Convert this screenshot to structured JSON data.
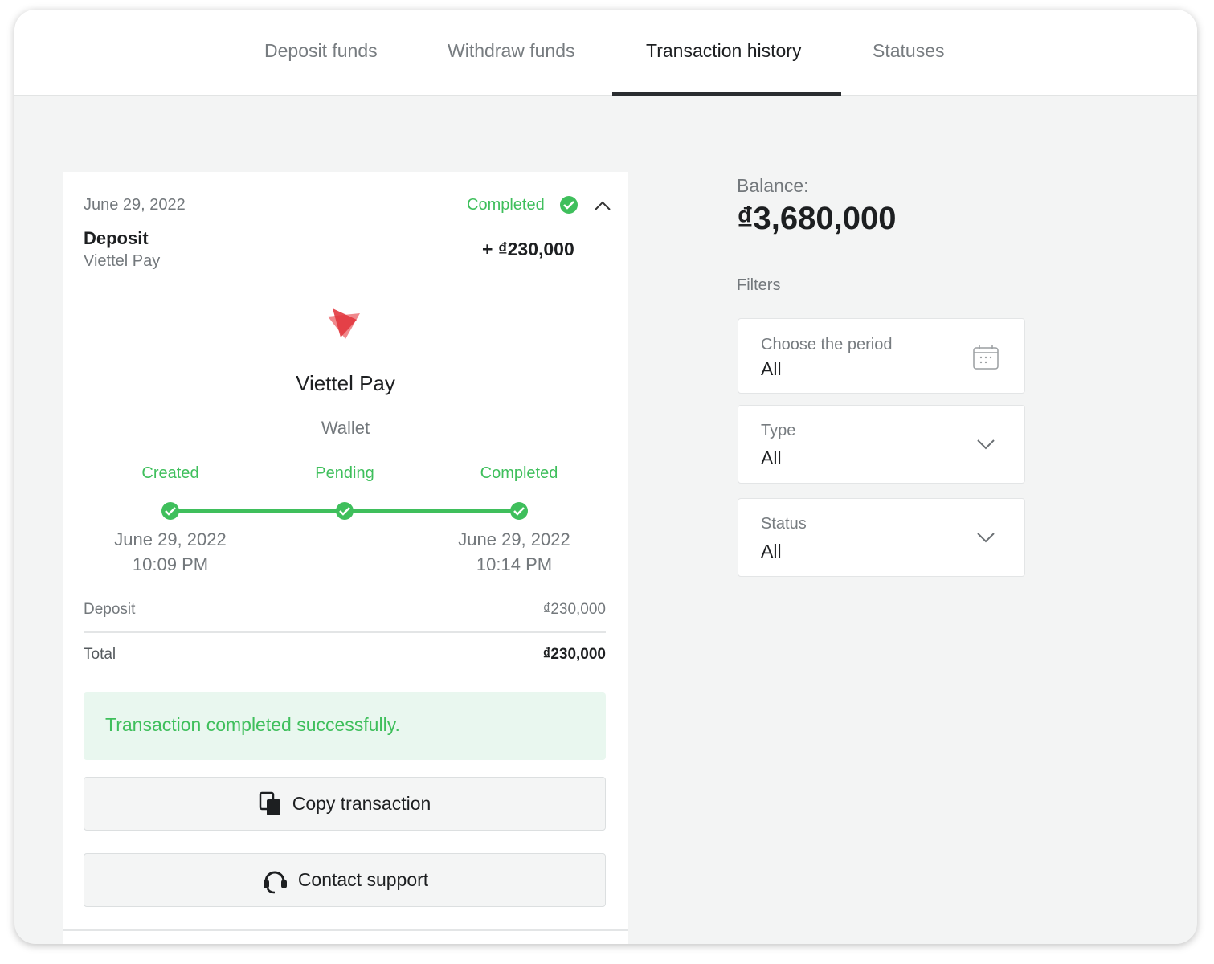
{
  "tabs": [
    {
      "label": "Deposit funds"
    },
    {
      "label": "Withdraw funds"
    },
    {
      "label": "Transaction history",
      "active": true
    },
    {
      "label": "Statuses"
    }
  ],
  "transaction": {
    "date": "June 29, 2022",
    "status": "Completed",
    "type": "Deposit",
    "method": "Viettel Pay",
    "amount": "+ ₫230,000",
    "method_name": "Viettel Pay",
    "method_kind": "Wallet",
    "logo_text": "viettel pay",
    "steps": [
      {
        "label": "Created",
        "date": "June 29, 2022",
        "time": "10:09 PM"
      },
      {
        "label": "Pending"
      },
      {
        "label": "Completed",
        "date": "June 29, 2022",
        "time": "10:14 PM"
      }
    ],
    "deposit_label": "Deposit",
    "deposit_value": "₫230,000",
    "total_label": "Total",
    "total_value": "₫230,000",
    "message": "Transaction completed successfully.",
    "copy_label": "Copy transaction",
    "support_label": "Contact support"
  },
  "balance": {
    "label": "Balance:",
    "value": "₫3,680,000"
  },
  "filters": {
    "title": "Filters",
    "period": {
      "label": "Choose the period",
      "value": "All"
    },
    "type": {
      "label": "Type",
      "value": "All"
    },
    "status": {
      "label": "Status",
      "value": "All"
    }
  },
  "colors": {
    "accent": "#3fbf5c",
    "success_bg": "#e9f7ef",
    "brand_red": "#e2383f"
  }
}
